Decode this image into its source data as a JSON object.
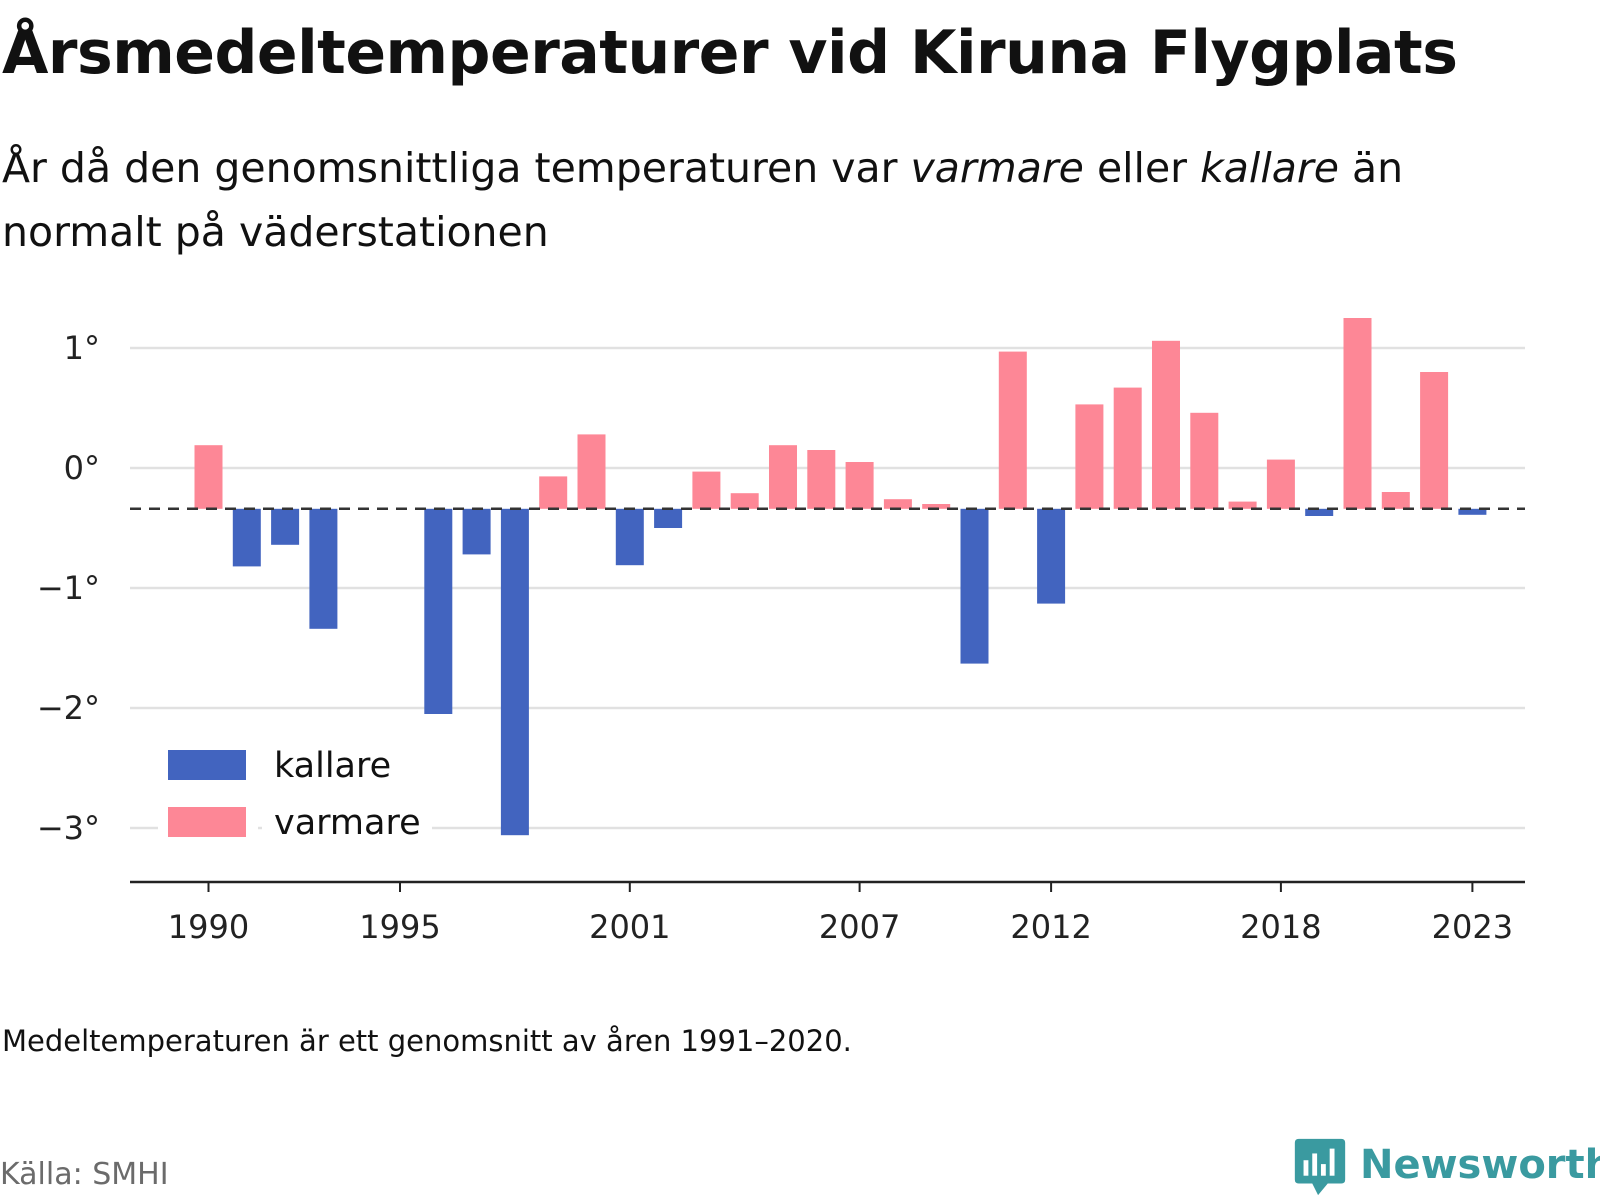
{
  "title": "Årsmedeltemperaturer vid Kiruna Flygplats",
  "subtitle": {
    "part1": "År då den genomsnittliga temperaturen var ",
    "warmer_word": "varmare",
    "part2": " eller ",
    "colder_word": "kallare",
    "part3": " än normalt på väderstationen"
  },
  "note": "Medeltemperaturen är ett genomsnitt av åren 1991–2020.",
  "source": "Källa: SMHI",
  "brand": "Newsworthy",
  "colors": {
    "colder": "#4264bf",
    "warmer": "#fd8796",
    "brand": "#3a9aa0"
  },
  "chart_data": {
    "type": "bar",
    "baseline": -0.34,
    "ylim": [
      -3.5,
      1.5
    ],
    "y_ticks": [
      {
        "value": 1,
        "label": "1°"
      },
      {
        "value": 0,
        "label": "0°"
      },
      {
        "value": -1,
        "label": "−1°"
      },
      {
        "value": -2,
        "label": "−2°"
      },
      {
        "value": -3,
        "label": "−3°"
      }
    ],
    "x_ticks": [
      "1990",
      "1995",
      "2001",
      "2007",
      "2012",
      "2018",
      "2023"
    ],
    "legend": [
      {
        "key": "colder",
        "label": "kallare"
      },
      {
        "key": "warmer",
        "label": "varmare"
      }
    ],
    "years": [
      1990,
      1991,
      1992,
      1993,
      1994,
      1995,
      1996,
      1997,
      1998,
      1999,
      2000,
      2001,
      2002,
      2003,
      2004,
      2005,
      2006,
      2007,
      2008,
      2009,
      2010,
      2011,
      2012,
      2013,
      2014,
      2015,
      2016,
      2017,
      2018,
      2019,
      2020,
      2021,
      2022,
      2023
    ],
    "values": [
      0.19,
      -0.82,
      -0.64,
      -1.34,
      null,
      null,
      -2.05,
      -0.72,
      -3.06,
      -0.07,
      0.28,
      -0.81,
      -0.5,
      -0.03,
      -0.21,
      0.19,
      0.15,
      0.05,
      -0.26,
      -0.3,
      -1.63,
      0.97,
      -1.13,
      0.53,
      0.67,
      1.06,
      0.46,
      -0.28,
      0.07,
      -0.4,
      1.25,
      -0.2,
      0.8,
      -0.39
    ]
  }
}
